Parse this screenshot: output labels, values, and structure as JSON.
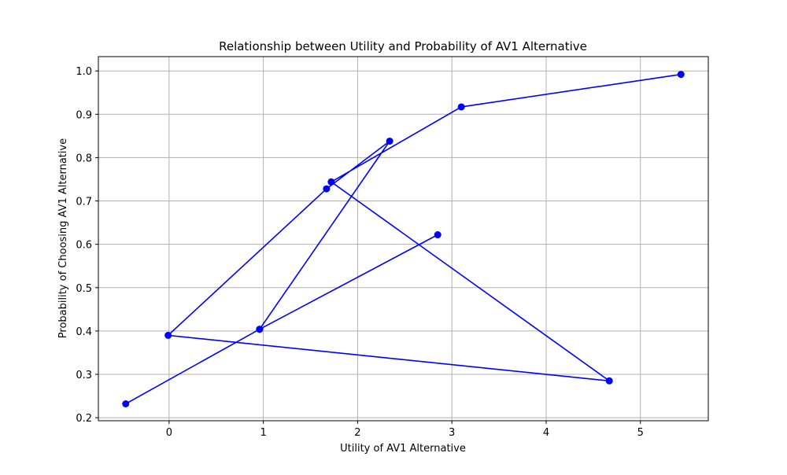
{
  "chart_data": {
    "type": "line",
    "title": "Relationship between Utility and Probability of AV1 Alternative",
    "xlabel": "Utility of AV1 Alternative",
    "ylabel": "Probability of Choosing AV1 Alternative",
    "xlim": [
      -0.75,
      5.72
    ],
    "ylim": [
      0.193,
      1.033
    ],
    "xticks": [
      0,
      1,
      2,
      3,
      4,
      5
    ],
    "yticks": [
      0.2,
      0.3,
      0.4,
      0.5,
      0.6,
      0.7,
      0.8,
      0.9,
      1.0
    ],
    "grid": true,
    "series": [
      {
        "color": "#0000ff",
        "marker": "circle",
        "x": [
          -0.46,
          0.96,
          2.85,
          0.96,
          2.34,
          1.67,
          -0.01,
          4.67,
          1.72,
          3.1,
          5.43
        ],
        "y": [
          0.232,
          0.404,
          0.622,
          0.404,
          0.838,
          0.728,
          0.39,
          0.285,
          0.744,
          0.917,
          0.992
        ]
      }
    ]
  }
}
